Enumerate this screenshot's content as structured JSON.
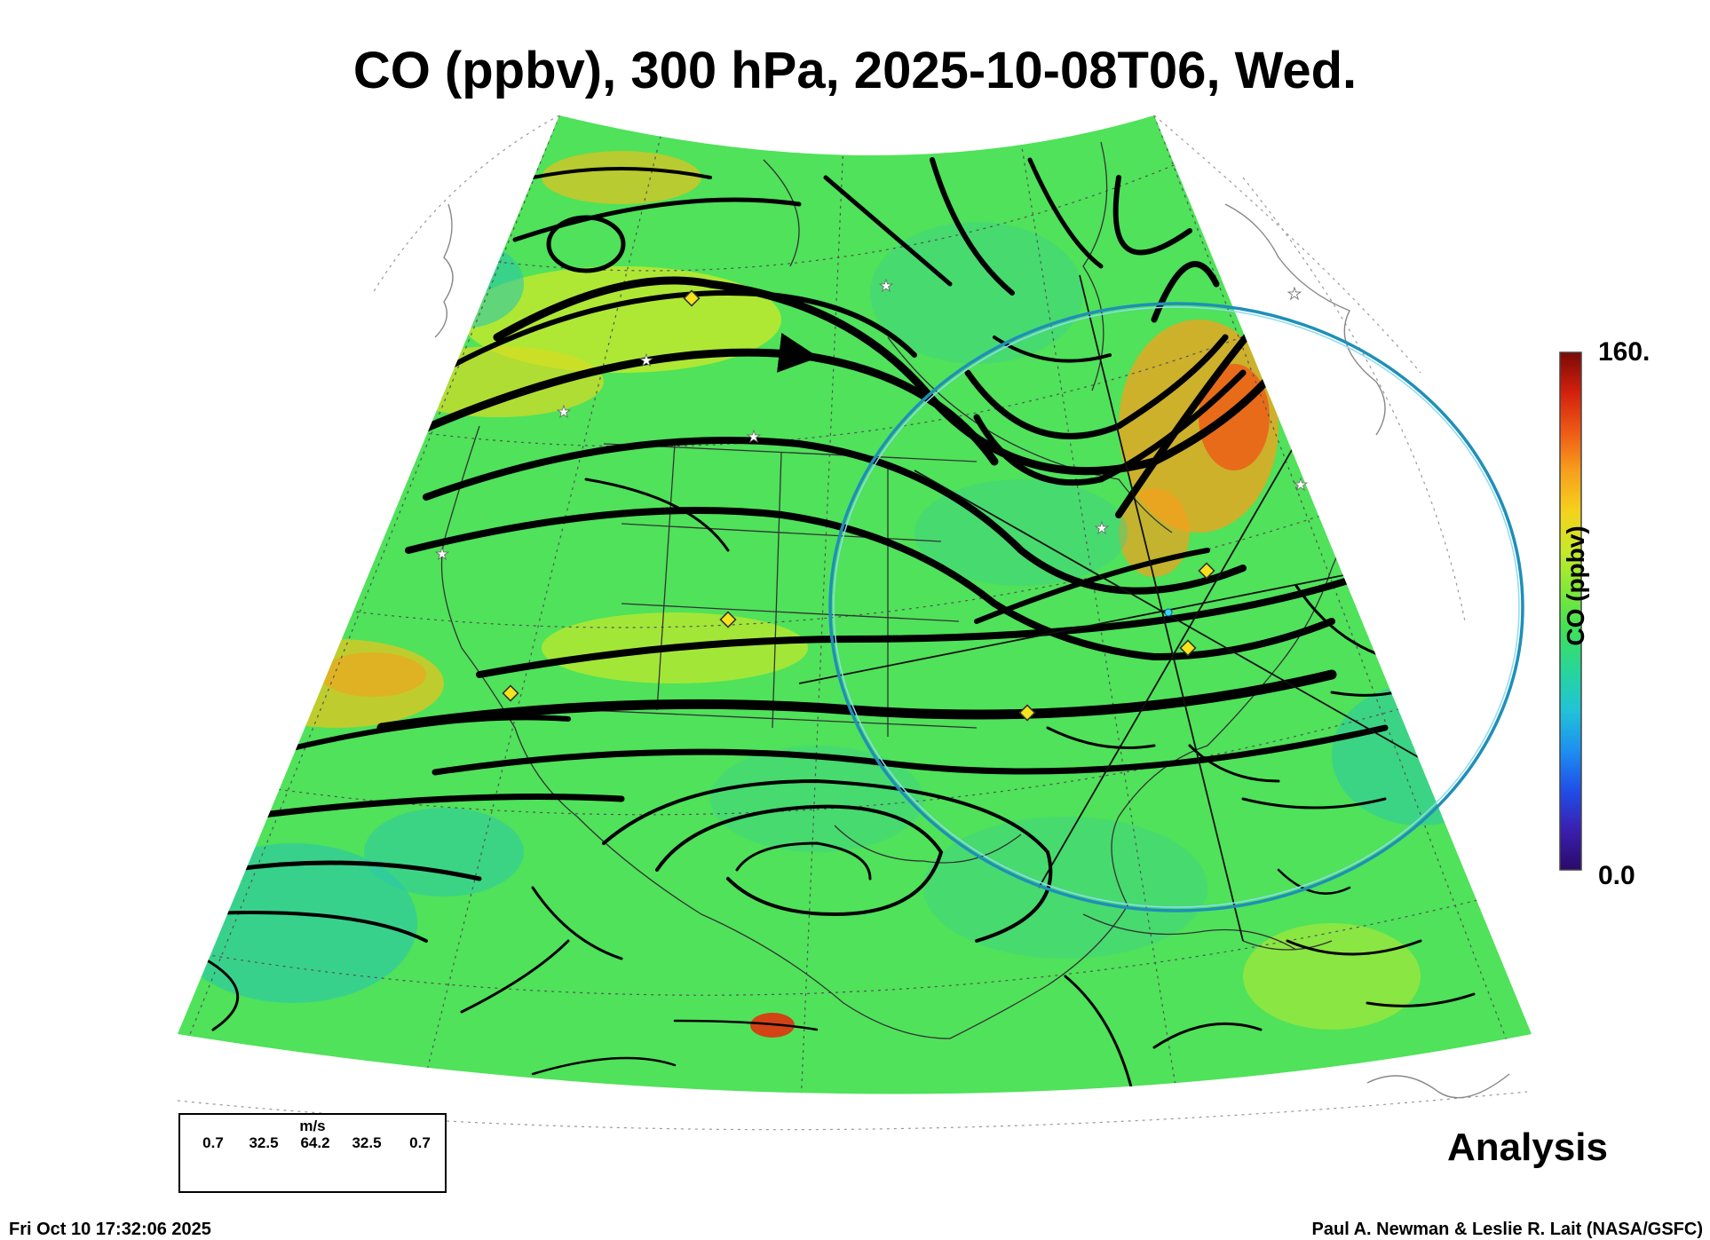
{
  "title": "CO (ppbv), 300 hPa, 2025-10-08T06, Wed.",
  "colorbar": {
    "max_label": "160.",
    "min_label": "0.0",
    "title": "CO (ppbv)",
    "min": 0,
    "max": 160,
    "colors": [
      "#2a0a6a",
      "#3a1fb0",
      "#1f4fe8",
      "#1e8ff0",
      "#20c3d8",
      "#27d59a",
      "#3fe05a",
      "#7fe838",
      "#c6ea2a",
      "#f5d21c",
      "#f7a01c",
      "#ef5a16",
      "#d2200e",
      "#7a0a06"
    ]
  },
  "wind_legend": {
    "unit": "m/s",
    "speeds": [
      "0.7",
      "32.5",
      "64.2",
      "32.5",
      "0.7"
    ]
  },
  "label_analysis": "Analysis",
  "timestamp": "Fri Oct 10 17:32:06 2025",
  "credit": "Paul A. Newman & Leslie R. Lait (NASA/GSFC)",
  "map": {
    "field_base_color": "#4fe25a",
    "high_co_color": "#ef6a1a",
    "low_co_color": "#2cc8a8",
    "circle_color": "#2bb6d8",
    "marker_diamond_color": "#f6e31c",
    "marker_star_color": "#ffffff"
  }
}
